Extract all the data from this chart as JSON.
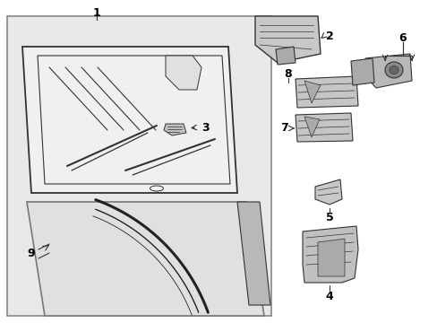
{
  "bg": "#ffffff",
  "box_fill": "#e8e8e8",
  "box_edge": "#888888",
  "lc": "#333333",
  "lc_dark": "#222222",
  "white": "#ffffff",
  "gray_light": "#d0d0d0",
  "gray_med": "#b0b0b0",
  "fig_w": 4.89,
  "fig_h": 3.6,
  "dpi": 100
}
